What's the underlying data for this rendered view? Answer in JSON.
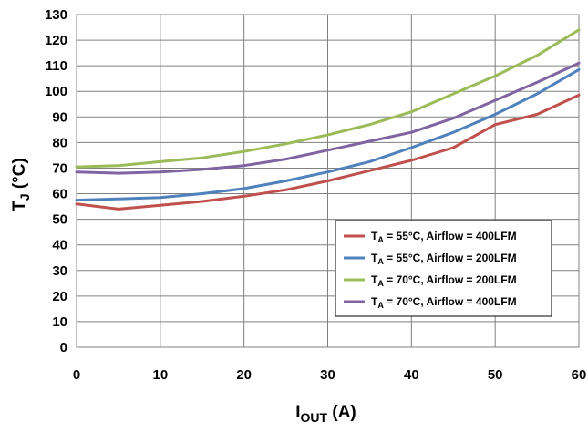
{
  "chart_data": {
    "type": "line",
    "xlabel": {
      "main": "I",
      "sub": "OUT",
      "unit": " (A)"
    },
    "ylabel": {
      "main": "T",
      "sub": "J",
      "unit": " (°C)"
    },
    "xlim": [
      0,
      60
    ],
    "ylim": [
      0,
      130
    ],
    "x_ticks": [
      0,
      10,
      20,
      30,
      40,
      50,
      60
    ],
    "y_ticks": [
      0,
      10,
      20,
      30,
      40,
      50,
      60,
      70,
      80,
      90,
      100,
      110,
      120,
      130
    ],
    "grid": true,
    "legend_position": "lower-right",
    "series": [
      {
        "name": "T_A = 55°C, Airflow = 400LFM",
        "legend": {
          "main": "T",
          "sub": "A",
          "rest": " = 55°C, Airflow = 400LFM"
        },
        "color": "#c0504d",
        "x": [
          0,
          5,
          10,
          15,
          20,
          25,
          30,
          35,
          40,
          45,
          50,
          55,
          60
        ],
        "y": [
          56,
          54,
          55.5,
          57,
          59,
          61.5,
          65,
          69,
          73,
          78,
          87,
          91,
          98.5
        ]
      },
      {
        "name": "T_A = 55°C, Airflow = 200LFM",
        "legend": {
          "main": "T",
          "sub": "A",
          "rest": " = 55°C, Airflow = 200LFM"
        },
        "color": "#4f81bd",
        "x": [
          0,
          5,
          10,
          15,
          20,
          25,
          30,
          35,
          40,
          45,
          50,
          55,
          60
        ],
        "y": [
          57.5,
          58,
          58.5,
          60,
          62,
          65,
          68.5,
          72.5,
          78,
          84,
          91,
          99,
          108.5
        ]
      },
      {
        "name": "T_A = 70°C, Airflow = 200LFM",
        "legend": {
          "main": "T",
          "sub": "A",
          "rest": " = 70°C, Airflow = 200LFM"
        },
        "color": "#9bbb59",
        "x": [
          0,
          5,
          10,
          15,
          20,
          25,
          30,
          35,
          40,
          45,
          50,
          55,
          60
        ],
        "y": [
          70.5,
          71,
          72.5,
          74,
          76.5,
          79.5,
          83,
          87,
          92,
          99,
          106,
          114,
          124
        ]
      },
      {
        "name": "T_A = 70°C, Airflow = 400LFM",
        "legend": {
          "main": "T",
          "sub": "A",
          "rest": " = 70°C, Airflow = 400LFM"
        },
        "color": "#8064a2",
        "x": [
          0,
          5,
          10,
          15,
          20,
          25,
          30,
          35,
          40,
          45,
          50,
          55,
          60
        ],
        "y": [
          68.5,
          68,
          68.5,
          69.5,
          71,
          73.5,
          77,
          80.5,
          84,
          89.5,
          96.5,
          103.5,
          111
        ]
      }
    ]
  }
}
